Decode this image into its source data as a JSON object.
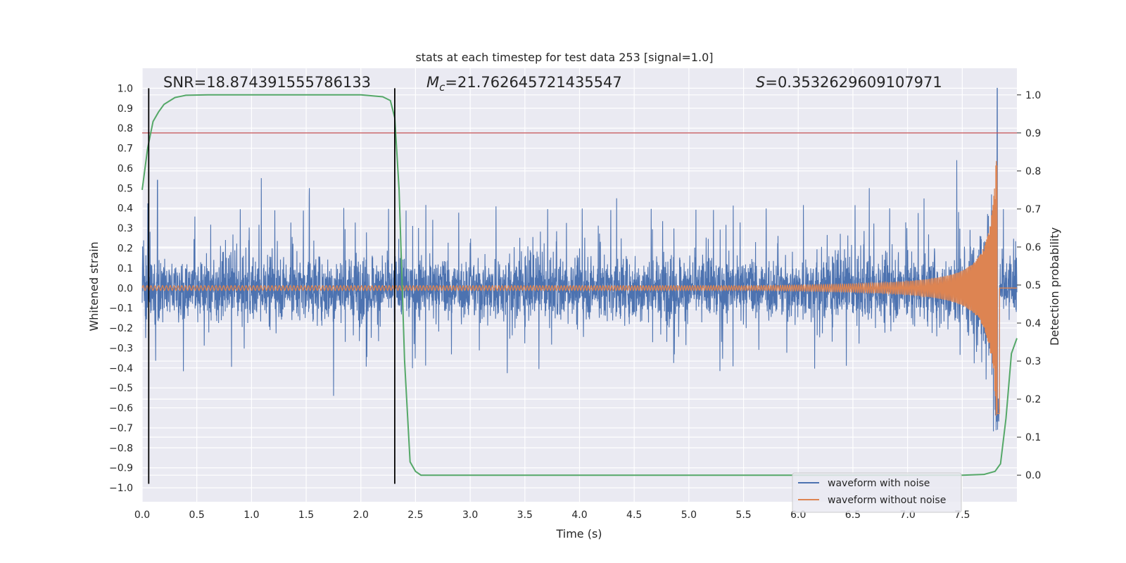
{
  "chart_data": {
    "type": "line",
    "title": "stats at each timestep for test data 253 [signal=1.0]",
    "xlabel": "Time (s)",
    "ylabel": "Whitened strain",
    "y2label": "Detection probability",
    "xlim": [
      0.0,
      8.0
    ],
    "ylim": [
      -1.07,
      1.1
    ],
    "y2lim": [
      -0.07,
      1.07
    ],
    "x_ticks": [
      0.0,
      0.5,
      1.0,
      1.5,
      2.0,
      2.5,
      3.0,
      3.5,
      4.0,
      4.5,
      5.0,
      5.5,
      6.0,
      6.5,
      7.0,
      7.5
    ],
    "x_tick_labels": [
      "0.0",
      "0.5",
      "1.0",
      "1.5",
      "2.0",
      "2.5",
      "3.0",
      "3.5",
      "4.0",
      "4.5",
      "5.0",
      "5.5",
      "6.0",
      "6.5",
      "7.0",
      "7.5"
    ],
    "y_ticks": [
      1.0,
      0.9,
      0.8,
      0.7,
      0.6,
      0.5,
      0.4,
      0.3,
      0.2,
      0.1,
      0.0,
      -0.1,
      -0.2,
      -0.3,
      -0.4,
      -0.5,
      -0.6,
      -0.7,
      -0.8,
      -0.9,
      -1.0
    ],
    "y_tick_labels": [
      "1.0",
      "0.9",
      "0.8",
      "0.7",
      "0.6",
      "0.5",
      "0.4",
      "0.3",
      "0.2",
      "0.1",
      "0.0",
      "−0.1",
      "−0.2",
      "−0.3",
      "−0.4",
      "−0.5",
      "−0.6",
      "−0.7",
      "−0.8",
      "−0.9",
      "−1.0"
    ],
    "y2_ticks": [
      1.0,
      0.9,
      0.8,
      0.7,
      0.6,
      0.5,
      0.4,
      0.3,
      0.2,
      0.1,
      0.0
    ],
    "y2_tick_labels": [
      "1.0",
      "0.9",
      "0.8",
      "0.7",
      "0.6",
      "0.5",
      "0.4",
      "0.3",
      "0.2",
      "0.1",
      "0.0"
    ],
    "annotations": {
      "snr": "SNR=18.874391555786133",
      "mc_symbol": "M",
      "mc_sub": "c",
      "mc_value": "=21.762645721435547",
      "s_symbol": "S",
      "s_value": "=0.3532629609107971"
    },
    "threshold": {
      "axis": "y2",
      "value": 0.9,
      "color": "#c44e52"
    },
    "vertical_lines": [
      0.06,
      2.31
    ],
    "vertical_line_range": [
      -0.98,
      1.0
    ],
    "series": [
      {
        "name": "waveform with noise",
        "color": "#4c72b0",
        "axis": "y",
        "description": "noisy whitened strain, amplitude ~0.2 with spikes to ~0.55; spike to 1.0 near t=7.82",
        "typical_amplitude": 0.2,
        "peak_spikes": [
          {
            "x": 0.14,
            "y": 0.54
          },
          {
            "x": 1.09,
            "y": 0.55
          },
          {
            "x": 1.53,
            "y": 0.5
          },
          {
            "x": 1.75,
            "y": -0.54
          },
          {
            "x": 6.65,
            "y": 0.5
          },
          {
            "x": 7.45,
            "y": 0.64
          },
          {
            "x": 7.8,
            "y": -0.61
          },
          {
            "x": 7.82,
            "y": 1.0
          }
        ]
      },
      {
        "name": "waveform without noise",
        "color": "#dd8452",
        "axis": "y",
        "description": "chirp signal, amplitude grows from ~0.01 to ~0.8, merger at t=7.82",
        "merger_time": 7.82,
        "peak_amplitude": 0.8
      },
      {
        "name": "detection probability",
        "color": "#55a868",
        "axis": "y2",
        "in_legend": false,
        "x": [
          0.0,
          0.05,
          0.1,
          0.15,
          0.2,
          0.3,
          0.4,
          0.6,
          1.0,
          1.5,
          2.0,
          2.2,
          2.27,
          2.31,
          2.35,
          2.4,
          2.45,
          2.5,
          2.55,
          3.0,
          4.0,
          5.0,
          6.0,
          7.0,
          7.5,
          7.7,
          7.8,
          7.85,
          7.9,
          7.95,
          8.0
        ],
        "y": [
          0.75,
          0.86,
          0.93,
          0.955,
          0.975,
          0.993,
          0.999,
          1.0,
          1.0,
          1.0,
          1.0,
          0.995,
          0.985,
          0.94,
          0.75,
          0.3,
          0.035,
          0.01,
          0.0,
          0.0,
          0.0,
          0.0,
          0.0,
          0.0,
          0.0,
          0.002,
          0.01,
          0.03,
          0.15,
          0.32,
          0.36
        ]
      }
    ],
    "legend": {
      "position": "lower-right",
      "entries": [
        {
          "label": "waveform with noise",
          "color": "#4c72b0"
        },
        {
          "label": "waveform without noise",
          "color": "#dd8452"
        }
      ]
    },
    "colors": {
      "background": "#eaeaf2",
      "grid": "#ffffff",
      "vline": "#000000"
    }
  }
}
